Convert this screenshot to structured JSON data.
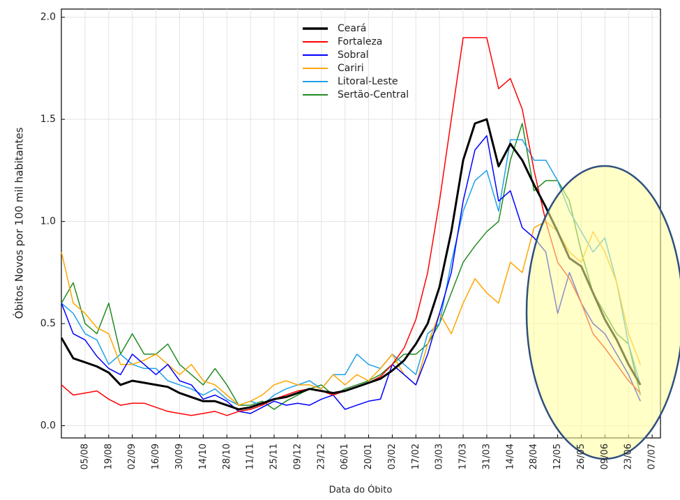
{
  "chart_data": {
    "type": "line",
    "y_label": "Óbitos Novos por 100 mil habitantes",
    "x_label": "Data do Óbito",
    "categories": [
      null,
      null,
      "05/08",
      null,
      "19/08",
      null,
      "02/09",
      null,
      "16/09",
      null,
      "30/09",
      null,
      "14/10",
      null,
      "28/10",
      null,
      "11/11",
      null,
      "25/11",
      null,
      "09/12",
      null,
      "23/12",
      null,
      "06/01",
      null,
      "20/01",
      null,
      "03/02",
      null,
      "17/02",
      null,
      "03/03",
      null,
      "17/03",
      null,
      "31/03",
      null,
      "14/04",
      null,
      "28/04",
      null,
      "12/05",
      null,
      "26/05",
      null,
      "09/06",
      null,
      "23/06",
      null,
      "07/07"
    ],
    "series": [
      {
        "name": "Ceará",
        "color": "#000000",
        "width": 3,
        "values": [
          0.43,
          0.33,
          0.31,
          0.29,
          0.26,
          0.2,
          0.22,
          0.21,
          0.2,
          0.19,
          0.16,
          0.14,
          0.12,
          0.12,
          0.1,
          0.08,
          0.09,
          0.11,
          0.13,
          0.14,
          0.16,
          0.18,
          0.17,
          0.16,
          0.17,
          0.19,
          0.21,
          0.23,
          0.27,
          0.32,
          0.4,
          0.5,
          0.68,
          0.95,
          1.3,
          1.48,
          1.5,
          1.27,
          1.38,
          1.3,
          1.18,
          1.07,
          0.95,
          0.82,
          0.78,
          0.65,
          0.52,
          0.42,
          0.3,
          0.2,
          null
        ]
      },
      {
        "name": "Fortaleza",
        "color": "#ff0000",
        "width": 1.5,
        "values": [
          0.2,
          0.15,
          0.16,
          0.17,
          0.13,
          0.1,
          0.11,
          0.11,
          0.09,
          0.07,
          0.06,
          0.05,
          0.06,
          0.07,
          0.05,
          0.07,
          0.08,
          0.1,
          0.13,
          0.15,
          0.17,
          0.18,
          0.17,
          0.15,
          0.17,
          0.19,
          0.21,
          0.24,
          0.3,
          0.38,
          0.52,
          0.75,
          1.1,
          1.5,
          1.9,
          1.9,
          1.9,
          1.65,
          1.7,
          1.55,
          1.25,
          1.0,
          0.8,
          0.72,
          0.6,
          0.45,
          0.38,
          0.3,
          0.22,
          0.16,
          null
        ]
      },
      {
        "name": "Sobral",
        "color": "#0000ff",
        "width": 1.5,
        "values": [
          0.6,
          0.45,
          0.42,
          0.34,
          0.28,
          0.25,
          0.35,
          0.3,
          0.25,
          0.3,
          0.22,
          0.2,
          0.13,
          0.15,
          0.12,
          0.07,
          0.06,
          0.09,
          0.12,
          0.1,
          0.11,
          0.1,
          0.13,
          0.15,
          0.08,
          0.1,
          0.12,
          0.13,
          0.3,
          0.25,
          0.2,
          0.35,
          0.55,
          0.75,
          1.1,
          1.35,
          1.42,
          1.1,
          1.15,
          0.97,
          0.92,
          0.85,
          0.55,
          0.75,
          0.6,
          0.5,
          0.45,
          0.35,
          0.25,
          0.12,
          null
        ]
      },
      {
        "name": "Cariri",
        "color": "#ffa500",
        "width": 1.5,
        "values": [
          0.85,
          0.6,
          0.55,
          0.48,
          0.45,
          0.3,
          0.3,
          0.32,
          0.35,
          0.3,
          0.25,
          0.3,
          0.22,
          0.2,
          0.15,
          0.1,
          0.12,
          0.15,
          0.2,
          0.22,
          0.2,
          0.2,
          0.18,
          0.25,
          0.2,
          0.25,
          0.22,
          0.28,
          0.35,
          0.25,
          0.2,
          0.4,
          0.55,
          0.45,
          0.6,
          0.72,
          0.65,
          0.6,
          0.8,
          0.75,
          0.97,
          1.0,
          0.95,
          0.85,
          0.8,
          0.95,
          0.85,
          0.7,
          0.45,
          0.3,
          null
        ]
      },
      {
        "name": "Litoral-Leste",
        "color": "#1e9fe8",
        "width": 1.5,
        "values": [
          0.6,
          0.55,
          0.45,
          0.42,
          0.3,
          0.35,
          0.3,
          0.28,
          0.28,
          0.22,
          0.2,
          0.18,
          0.15,
          0.18,
          0.13,
          0.1,
          0.12,
          0.1,
          0.15,
          0.18,
          0.2,
          0.22,
          0.18,
          0.25,
          0.25,
          0.35,
          0.3,
          0.28,
          0.35,
          0.3,
          0.25,
          0.45,
          0.5,
          0.8,
          1.05,
          1.2,
          1.25,
          1.05,
          1.4,
          1.4,
          1.3,
          1.3,
          1.2,
          1.05,
          0.95,
          0.85,
          0.92,
          0.7,
          0.4,
          0.2,
          null
        ]
      },
      {
        "name": "Sertão-Central",
        "color": "#228b22",
        "width": 1.5,
        "values": [
          0.6,
          0.7,
          0.5,
          0.45,
          0.6,
          0.35,
          0.45,
          0.35,
          0.35,
          0.4,
          0.3,
          0.25,
          0.2,
          0.28,
          0.2,
          0.1,
          0.1,
          0.12,
          0.08,
          0.12,
          0.15,
          0.18,
          0.2,
          0.15,
          0.18,
          0.2,
          0.22,
          0.25,
          0.3,
          0.35,
          0.35,
          0.4,
          0.5,
          0.65,
          0.8,
          0.88,
          0.95,
          1.0,
          1.3,
          1.48,
          1.15,
          1.2,
          1.2,
          1.1,
          0.85,
          0.65,
          0.55,
          0.45,
          0.4,
          0.15,
          null
        ]
      }
    ],
    "ylim": [
      -0.06,
      2.04
    ],
    "yticks": [
      {
        "value": 0,
        "label": "0.0"
      },
      0.5,
      {
        "value": 1,
        "label": "1.0"
      },
      1.5,
      {
        "value": 2,
        "label": "2.0"
      }
    ],
    "grid": true
  }
}
